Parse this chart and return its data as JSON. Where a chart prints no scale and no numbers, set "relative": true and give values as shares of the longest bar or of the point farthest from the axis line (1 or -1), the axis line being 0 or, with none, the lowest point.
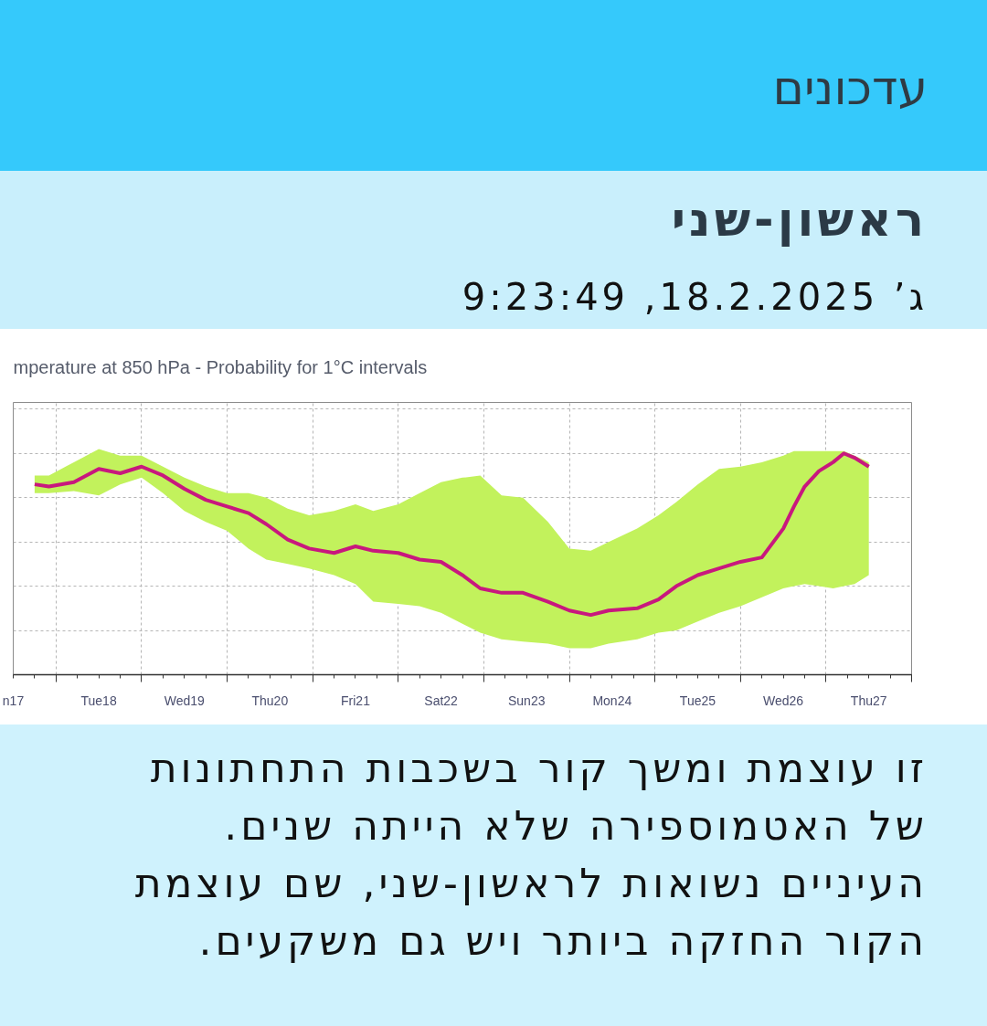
{
  "chart_data": {
    "type": "line",
    "title": "mperature at 850 hPa - Probability for 1°C intervals",
    "annotations": [
      "עדכונים",
      "ראשון-שני",
      "ג’ 18.2.2025, 9:23:49",
      "זו עוצמת ומשך קור בשכבות התחתונות של האטמוספירה שלא הייתה שנים. העיניים נשואות לראשון-שני, שם עוצמת הקור החזקה ביותר ויש גם משקעים."
    ],
    "relative": true,
    "x": [
      "2025-02-17T18:00",
      "2025-02-17T22:00",
      "2025-02-18T05:00",
      "2025-02-18T12:00",
      "2025-02-18T18:00",
      "2025-02-19T00:00",
      "2025-02-19T06:00",
      "2025-02-19T12:00",
      "2025-02-19T18:00",
      "2025-02-20T00:00",
      "2025-02-20T06:00",
      "2025-02-20T11:00",
      "2025-02-20T17:00",
      "2025-02-20T23:00",
      "2025-02-21T06:00",
      "2025-02-21T12:00",
      "2025-02-21T17:00",
      "2025-02-22T00:00",
      "2025-02-22T06:00",
      "2025-02-22T12:00",
      "2025-02-22T18:00",
      "2025-02-22T23:00",
      "2025-02-23T05:00",
      "2025-02-23T11:00",
      "2025-02-23T18:00",
      "2025-02-24T00:00",
      "2025-02-24T06:00",
      "2025-02-24T11:00",
      "2025-02-24T19:00",
      "2025-02-25T01:00",
      "2025-02-25T06:00",
      "2025-02-25T12:00",
      "2025-02-25T18:00",
      "2025-02-26T00:00",
      "2025-02-26T06:00",
      "2025-02-26T12:00",
      "2025-02-26T15:00",
      "2025-02-26T18:00",
      "2025-02-26T22:00",
      "2025-02-27T02:00",
      "2025-02-27T05:00",
      "2025-02-27T08:00",
      "2025-02-27T12:00"
    ],
    "series": [
      {
        "color": "#c8187e",
        "values": [
          0.86,
          0.85,
          0.87,
          0.93,
          0.91,
          0.94,
          0.9,
          0.84,
          0.79,
          0.76,
          0.73,
          0.68,
          0.61,
          0.57,
          0.55,
          0.58,
          0.56,
          0.55,
          0.52,
          0.51,
          0.45,
          0.39,
          0.37,
          0.37,
          0.33,
          0.29,
          0.27,
          0.29,
          0.3,
          0.34,
          0.4,
          0.45,
          0.48,
          0.51,
          0.53,
          0.66,
          0.76,
          0.85,
          0.92,
          0.96,
          1.0,
          0.98,
          0.94
        ],
        "lower": [
          0.82,
          0.82,
          0.83,
          0.81,
          0.86,
          0.89,
          0.82,
          0.74,
          0.69,
          0.65,
          0.57,
          0.52,
          0.5,
          0.48,
          0.45,
          0.41,
          0.33,
          0.32,
          0.31,
          0.28,
          0.23,
          0.19,
          0.16,
          0.15,
          0.14,
          0.12,
          0.12,
          0.14,
          0.16,
          0.19,
          0.2,
          0.24,
          0.28,
          0.31,
          0.35,
          0.39,
          0.4,
          0.41,
          0.4,
          0.39,
          0.4,
          0.41,
          0.45
        ],
        "upper": [
          0.9,
          0.9,
          0.96,
          1.02,
          0.99,
          0.99,
          0.94,
          0.89,
          0.85,
          0.82,
          0.82,
          0.8,
          0.75,
          0.72,
          0.74,
          0.77,
          0.74,
          0.77,
          0.82,
          0.87,
          0.89,
          0.9,
          0.81,
          0.8,
          0.69,
          0.57,
          0.56,
          0.6,
          0.66,
          0.72,
          0.78,
          0.86,
          0.93,
          0.94,
          0.96,
          0.99,
          1.01,
          1.01,
          1.01,
          1.01,
          1.01,
          0.99,
          0.96
        ]
      }
    ],
    "xlim": [
      "2025-02-17T12:00",
      "2025-02-28T00:00"
    ],
    "xticks": [
      {
        "value": "2025-02-17T12:00",
        "label": "n17"
      },
      {
        "value": "2025-02-18T00:00",
        "label": null
      },
      {
        "value": "2025-02-18T12:00",
        "label": "Tue18"
      },
      {
        "value": "2025-02-19T00:00",
        "label": null
      },
      {
        "value": "2025-02-19T12:00",
        "label": "Wed19"
      },
      {
        "value": "2025-02-20T00:00",
        "label": null
      },
      {
        "value": "2025-02-20T12:00",
        "label": "Thu20"
      },
      {
        "value": "2025-02-21T00:00",
        "label": null
      },
      {
        "value": "2025-02-21T12:00",
        "label": "Fri21"
      },
      {
        "value": "2025-02-22T00:00",
        "label": null
      },
      {
        "value": "2025-02-22T12:00",
        "label": "Sat22"
      },
      {
        "value": "2025-02-23T00:00",
        "label": null
      },
      {
        "value": "2025-02-23T12:00",
        "label": "Sun23"
      },
      {
        "value": "2025-02-24T00:00",
        "label": null
      },
      {
        "value": "2025-02-24T12:00",
        "label": "Mon24"
      },
      {
        "value": "2025-02-25T00:00",
        "label": null
      },
      {
        "value": "2025-02-25T12:00",
        "label": "Tue25"
      },
      {
        "value": "2025-02-26T00:00",
        "label": null
      },
      {
        "value": "2025-02-26T12:00",
        "label": "Wed26"
      },
      {
        "value": "2025-02-27T00:00",
        "label": null
      },
      {
        "value": "2025-02-27T12:00",
        "label": "Thu27"
      },
      {
        "value": "2025-02-28T00:00",
        "label": null
      }
    ],
    "grid": true
  }
}
